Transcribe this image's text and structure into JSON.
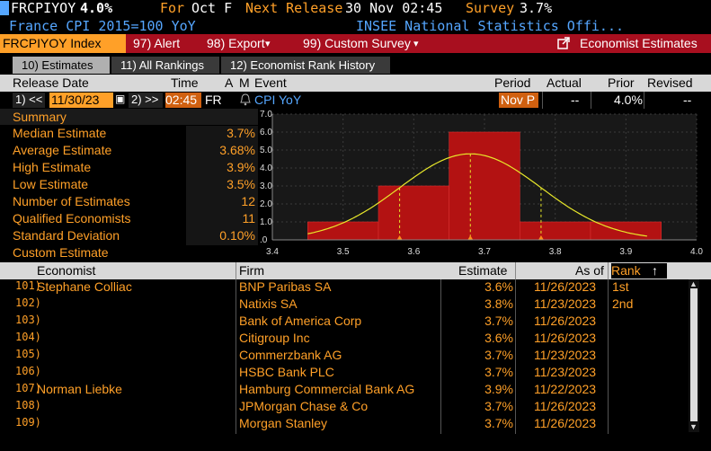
{
  "header": {
    "ticker": "FRCPIYOY",
    "value": "4.0%",
    "for_label": "For",
    "for_value": "Oct F",
    "next_label": "Next Release",
    "next_value": "30 Nov 02:45",
    "survey_label": "Survey",
    "survey_value": "3.7%",
    "desc": "France CPI 2015=100 YoY",
    "source": "INSEE National Statistics Offi..."
  },
  "menubar": {
    "ticker_box": "FRCPIYOY Index",
    "alert": "97) Alert",
    "export": "98) Export",
    "export_arrow": "▾",
    "custom_survey": "99) Custom Survey",
    "custom_arrow": "▾",
    "economist_estimates": "Economist Estimates"
  },
  "tabs": [
    {
      "label": "10) Estimates"
    },
    {
      "label": "11) All Rankings"
    },
    {
      "label": "12) Economist Rank History"
    }
  ],
  "event_header": {
    "release_date": "Release Date",
    "time": "Time",
    "a": "A",
    "m": "M",
    "event": "Event",
    "period": "Period",
    "actual": "Actual",
    "prior": "Prior",
    "revised": "Revised"
  },
  "event_row": {
    "prev_btn": "1) <<",
    "date": "11/30/23",
    "next_btn": "2) >>",
    "time": "02:45",
    "country": "FR",
    "event": "CPI YoY",
    "period": "Nov P",
    "actual": "--",
    "prior": "4.0%",
    "revised": "--"
  },
  "summary": {
    "title": "Summary",
    "rows": [
      {
        "label": "Median Estimate",
        "value": "3.7%"
      },
      {
        "label": "Average Estimate",
        "value": "3.68%"
      },
      {
        "label": "High Estimate",
        "value": "3.9%"
      },
      {
        "label": "Low Estimate",
        "value": "3.5%"
      },
      {
        "label": "Number of Estimates",
        "value": "12"
      },
      {
        "label": "Qualified Economists",
        "value": "11"
      },
      {
        "label": "Standard Deviation",
        "value": "0.10%"
      },
      {
        "label": "Custom Estimate",
        "value": ""
      }
    ]
  },
  "chart_data": {
    "type": "bar",
    "categories": [
      "3.5",
      "3.6",
      "3.7",
      "3.8",
      "3.9"
    ],
    "values": [
      1,
      3,
      6,
      1,
      1
    ],
    "xlim": [
      3.4,
      4.0
    ],
    "ylim": [
      0,
      7.0
    ],
    "xticks": [
      "3.4",
      "3.5",
      "3.6",
      "3.7",
      "3.8",
      "3.9",
      "4.0"
    ],
    "yticks": [
      "7.0",
      "6.0",
      "5.0",
      "4.0",
      "3.0",
      "2.0",
      "1.0",
      ".0"
    ],
    "bar_color": "#b31212",
    "curve_color": "#e8e82a",
    "markers": [
      3.58,
      3.68,
      3.78
    ]
  },
  "table": {
    "headers": {
      "economist": "Economist",
      "firm": "Firm",
      "estimate": "Estimate",
      "as_of": "As of",
      "rank": "Rank",
      "sort_icon": "↑"
    },
    "rows": [
      {
        "idx": "101)",
        "economist": "Stephane Colliac",
        "firm": "BNP Paribas SA",
        "estimate": "3.6%",
        "as_of": "11/26/2023",
        "rank": "1st"
      },
      {
        "idx": "102)",
        "economist": "",
        "firm": "Natixis SA",
        "estimate": "3.8%",
        "as_of": "11/23/2023",
        "rank": "2nd"
      },
      {
        "idx": "103)",
        "economist": "",
        "firm": "Bank of America Corp",
        "estimate": "3.7%",
        "as_of": "11/26/2023",
        "rank": ""
      },
      {
        "idx": "104)",
        "economist": "",
        "firm": "Citigroup Inc",
        "estimate": "3.6%",
        "as_of": "11/26/2023",
        "rank": ""
      },
      {
        "idx": "105)",
        "economist": "",
        "firm": "Commerzbank AG",
        "estimate": "3.7%",
        "as_of": "11/23/2023",
        "rank": ""
      },
      {
        "idx": "106)",
        "economist": "",
        "firm": "HSBC Bank PLC",
        "estimate": "3.7%",
        "as_of": "11/23/2023",
        "rank": ""
      },
      {
        "idx": "107)",
        "economist": "Norman Liebke",
        "firm": "Hamburg Commercial Bank AG",
        "estimate": "3.9%",
        "as_of": "11/22/2023",
        "rank": ""
      },
      {
        "idx": "108)",
        "economist": "",
        "firm": "JPMorgan Chase & Co",
        "estimate": "3.7%",
        "as_of": "11/26/2023",
        "rank": ""
      },
      {
        "idx": "109)",
        "economist": "",
        "firm": "Morgan Stanley",
        "estimate": "3.7%",
        "as_of": "11/26/2023",
        "rank": ""
      }
    ]
  }
}
